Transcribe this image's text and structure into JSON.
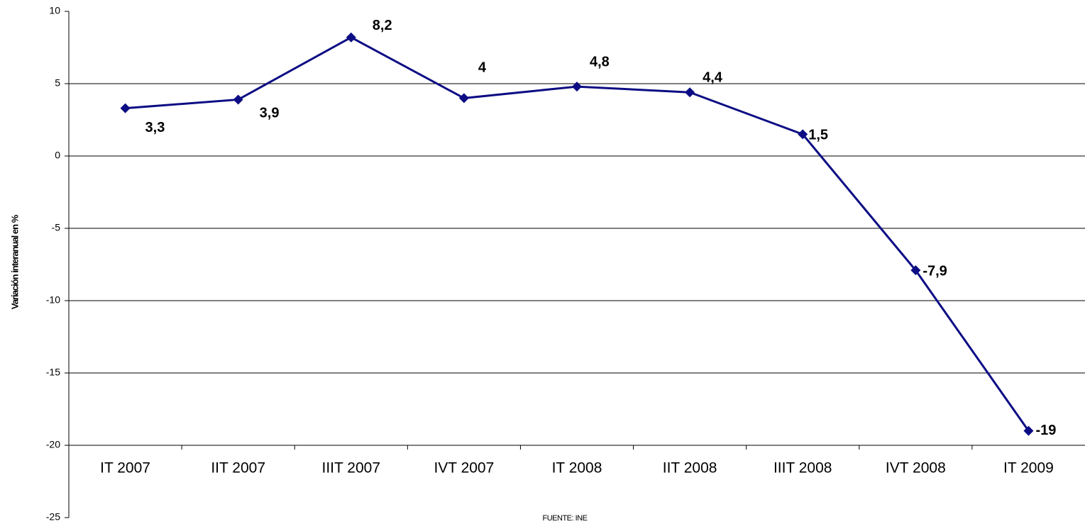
{
  "chart_data": {
    "type": "line",
    "y_axis_label": "Variación interanual en %",
    "source": "FUENTE: INE",
    "categories": [
      "IT 2007",
      "IIT 2007",
      "IIIT 2007",
      "IVT 2007",
      "IT 2008",
      "IIT 2008",
      "IIIT 2008",
      "IVT 2008",
      "IT 2009"
    ],
    "series": [
      {
        "name": "Variación interanual",
        "color": "#0c0c84",
        "values": [
          3.3,
          3.9,
          8.2,
          4,
          4.8,
          4.4,
          1.5,
          -7.9,
          -19
        ],
        "value_labels": [
          "3,3",
          "3,9",
          "8,2",
          "4",
          "4,8",
          "4,4",
          "1,5",
          "-7,9",
          "-19"
        ]
      }
    ],
    "ylim": [
      -25,
      10
    ],
    "yticks": [
      -25,
      -20,
      -15,
      -10,
      -5,
      0,
      5,
      10
    ],
    "category_axis_at": -20,
    "grid": true
  }
}
